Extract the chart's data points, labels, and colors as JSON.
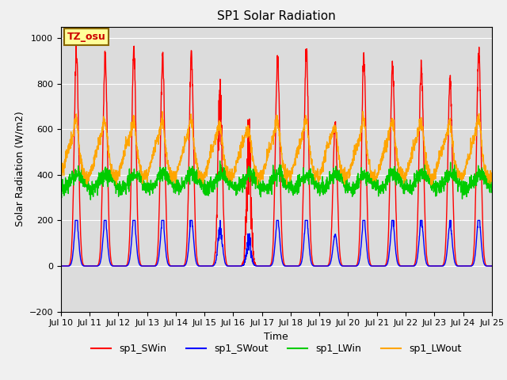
{
  "title": "SP1 Solar Radiation",
  "ylabel": "Solar Radiation (W/m2)",
  "xlabel": "Time",
  "ylim": [
    -200,
    1050
  ],
  "yticks": [
    -200,
    0,
    200,
    400,
    600,
    800,
    1000
  ],
  "colors": {
    "SWin": "#ff0000",
    "SWout": "#0000ff",
    "LWin": "#00cc00",
    "LWout": "#ffa500"
  },
  "legend_labels": [
    "sp1_SWin",
    "sp1_SWout",
    "sp1_LWin",
    "sp1_LWout"
  ],
  "annotation_text": "TZ_osu",
  "annotation_color": "#cc0000",
  "annotation_bg": "#ffff99",
  "bg_color": "#dcdcdc",
  "fig_bg_color": "#f0f0f0",
  "grid_color": "#ffffff",
  "title_fontsize": 11,
  "axis_fontsize": 9,
  "tick_fontsize": 8,
  "linewidth": 1.0
}
